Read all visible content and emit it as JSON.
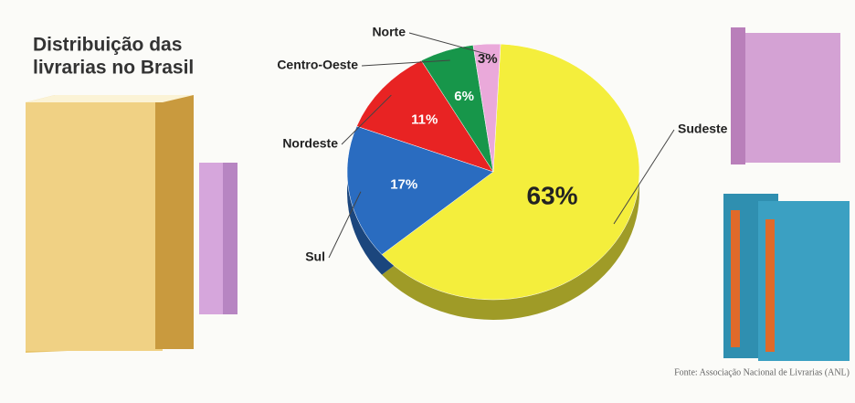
{
  "chart_data": {
    "type": "pie",
    "title": [
      "Distribuição das",
      "livrarias no Brasil"
    ],
    "categories": [
      "Sudeste",
      "Sul",
      "Nordeste",
      "Centro-Oeste",
      "Norte"
    ],
    "values": [
      63,
      17,
      11,
      6,
      3
    ],
    "value_labels": [
      "63%",
      "17%",
      "11%",
      "6%",
      "3%"
    ],
    "colors": [
      "#f4ee3c",
      "#2a6cc0",
      "#e82323",
      "#17964a",
      "#eaa9da"
    ],
    "source": "Fonte: Associação Nacional de Livrarias (ANL)"
  }
}
